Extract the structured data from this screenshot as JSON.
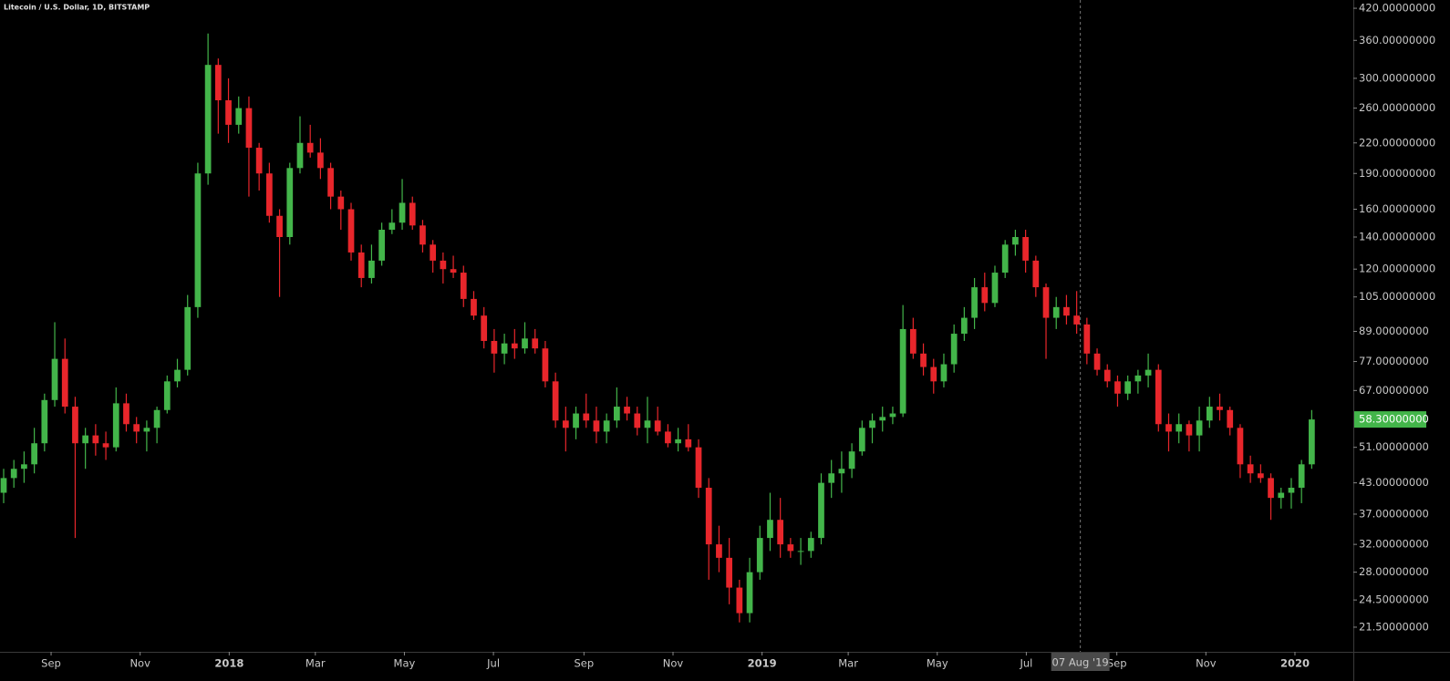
{
  "chart_data": {
    "type": "candlestick",
    "title": "Litecoin / U.S. Dollar, 1D, BITSTAMP",
    "log_scale": true,
    "up_color": "#43b54a",
    "down_color": "#e8262b",
    "xlim": [
      "2017-07-28",
      "2020-02-10"
    ],
    "ylim": [
      19.1,
      437
    ],
    "yticks": [
      {
        "value": 420,
        "label": "420.00000000"
      },
      {
        "value": 360,
        "label": "360.00000000"
      },
      {
        "value": 300,
        "label": "300.00000000"
      },
      {
        "value": 260,
        "label": "260.00000000"
      },
      {
        "value": 220,
        "label": "220.00000000"
      },
      {
        "value": 190,
        "label": "190.00000000"
      },
      {
        "value": 160,
        "label": "160.00000000"
      },
      {
        "value": 140,
        "label": "140.00000000"
      },
      {
        "value": 120,
        "label": "120.00000000"
      },
      {
        "value": 105,
        "label": "105.00000000"
      },
      {
        "value": 89,
        "label": "89.00000000"
      },
      {
        "value": 77,
        "label": "77.00000000"
      },
      {
        "value": 67,
        "label": "67.00000000"
      },
      {
        "value": 51,
        "label": "51.00000000"
      },
      {
        "value": 43,
        "label": "43.00000000"
      },
      {
        "value": 37,
        "label": "37.00000000"
      },
      {
        "value": 32,
        "label": "32.00000000"
      },
      {
        "value": 28,
        "label": "28.00000000"
      },
      {
        "value": 24.5,
        "label": "24.50000000"
      },
      {
        "value": 21.5,
        "label": "21.50000000"
      }
    ],
    "xticks": [
      {
        "value": "2017-09-01",
        "label": "Sep"
      },
      {
        "value": "2017-11-01",
        "label": "Nov"
      },
      {
        "value": "2018-01-01",
        "label": "2018"
      },
      {
        "value": "2018-03-01",
        "label": "Mar"
      },
      {
        "value": "2018-05-01",
        "label": "May"
      },
      {
        "value": "2018-07-01",
        "label": "Jul"
      },
      {
        "value": "2018-09-01",
        "label": "Sep"
      },
      {
        "value": "2018-11-01",
        "label": "Nov"
      },
      {
        "value": "2019-01-01",
        "label": "2019"
      },
      {
        "value": "2019-03-01",
        "label": "Mar"
      },
      {
        "value": "2019-05-01",
        "label": "May"
      },
      {
        "value": "2019-07-01",
        "label": "Jul"
      },
      {
        "value": "2019-09-01",
        "label": "Sep"
      },
      {
        "value": "2019-11-01",
        "label": "Nov"
      },
      {
        "value": "2020-01-01",
        "label": "2020"
      }
    ],
    "crosshair": {
      "value": "2019-08-07",
      "label": "07 Aug '19"
    },
    "last_price": {
      "value": 58.3,
      "label": "58.30000000"
    },
    "x": [
      "2017-07-27",
      "2017-08-03",
      "2017-08-10",
      "2017-08-17",
      "2017-08-24",
      "2017-08-31",
      "2017-09-07",
      "2017-09-14",
      "2017-09-21",
      "2017-09-28",
      "2017-10-05",
      "2017-10-12",
      "2017-10-19",
      "2017-10-26",
      "2017-11-02",
      "2017-11-09",
      "2017-11-16",
      "2017-11-23",
      "2017-11-30",
      "2017-12-07",
      "2017-12-14",
      "2017-12-21",
      "2017-12-28",
      "2018-01-04",
      "2018-01-11",
      "2018-01-18",
      "2018-01-25",
      "2018-02-01",
      "2018-02-08",
      "2018-02-15",
      "2018-02-22",
      "2018-03-01",
      "2018-03-08",
      "2018-03-15",
      "2018-03-22",
      "2018-03-29",
      "2018-04-05",
      "2018-04-12",
      "2018-04-19",
      "2018-04-26",
      "2018-05-03",
      "2018-05-10",
      "2018-05-17",
      "2018-05-24",
      "2018-05-31",
      "2018-06-07",
      "2018-06-14",
      "2018-06-21",
      "2018-06-28",
      "2018-07-05",
      "2018-07-12",
      "2018-07-19",
      "2018-07-26",
      "2018-08-02",
      "2018-08-09",
      "2018-08-16",
      "2018-08-23",
      "2018-08-30",
      "2018-09-06",
      "2018-09-13",
      "2018-09-20",
      "2018-09-27",
      "2018-10-04",
      "2018-10-11",
      "2018-10-18",
      "2018-10-25",
      "2018-11-01",
      "2018-11-08",
      "2018-11-15",
      "2018-11-22",
      "2018-11-29",
      "2018-12-06",
      "2018-12-13",
      "2018-12-20",
      "2018-12-27",
      "2019-01-03",
      "2019-01-10",
      "2019-01-17",
      "2019-01-24",
      "2019-01-31",
      "2019-02-07",
      "2019-02-14",
      "2019-02-21",
      "2019-02-28",
      "2019-03-07",
      "2019-03-14",
      "2019-03-21",
      "2019-03-28",
      "2019-04-04",
      "2019-04-11",
      "2019-04-18",
      "2019-04-25",
      "2019-05-02",
      "2019-05-09",
      "2019-05-16",
      "2019-05-23",
      "2019-05-30",
      "2019-06-06",
      "2019-06-13",
      "2019-06-20",
      "2019-06-27",
      "2019-07-04",
      "2019-07-11",
      "2019-07-18",
      "2019-07-25",
      "2019-08-01",
      "2019-08-08",
      "2019-08-15",
      "2019-08-22",
      "2019-08-29",
      "2019-09-05",
      "2019-09-12",
      "2019-09-19",
      "2019-09-26",
      "2019-10-03",
      "2019-10-10",
      "2019-10-17",
      "2019-10-24",
      "2019-10-31",
      "2019-11-07",
      "2019-11-14",
      "2019-11-21",
      "2019-11-28",
      "2019-12-05",
      "2019-12-12",
      "2019-12-19",
      "2019-12-26",
      "2020-01-02",
      "2020-01-09"
    ],
    "open": [
      41,
      44,
      46,
      47,
      52,
      64,
      78,
      62,
      52,
      54,
      52,
      51,
      63,
      57,
      55,
      56,
      61,
      70,
      74,
      100,
      190,
      320,
      270,
      240,
      260,
      215,
      190,
      155,
      140,
      195,
      220,
      210,
      195,
      170,
      160,
      130,
      115,
      125,
      145,
      150,
      165,
      148,
      135,
      125,
      120,
      118,
      104,
      96,
      85,
      80,
      84,
      82,
      86,
      82,
      70,
      58,
      56,
      60,
      58,
      55,
      58,
      62,
      60,
      56,
      58,
      55,
      52,
      53,
      51,
      42,
      32,
      30,
      26,
      23,
      28,
      33,
      36,
      32,
      31,
      31,
      33,
      43,
      45,
      46,
      50,
      56,
      58,
      59,
      60,
      90,
      80,
      75,
      70,
      76,
      88,
      95,
      110,
      102,
      118,
      135,
      140,
      125,
      110,
      95,
      100,
      96,
      92,
      80,
      74,
      70,
      66,
      70,
      72,
      74,
      57,
      55,
      57,
      54,
      58,
      62,
      61,
      56,
      47,
      45,
      44,
      40,
      41,
      42,
      47
    ],
    "high": [
      46,
      48,
      50,
      56,
      66,
      93,
      86,
      65,
      56,
      57,
      55,
      68,
      66,
      59,
      58,
      62,
      72,
      78,
      106,
      200,
      372,
      330,
      300,
      275,
      275,
      220,
      200,
      160,
      200,
      250,
      240,
      225,
      200,
      175,
      165,
      135,
      135,
      150,
      160,
      185,
      170,
      152,
      138,
      130,
      128,
      122,
      108,
      100,
      90,
      88,
      90,
      93,
      90,
      85,
      73,
      62,
      62,
      66,
      62,
      60,
      68,
      65,
      62,
      65,
      62,
      57,
      56,
      57,
      53,
      44,
      35,
      33,
      27,
      30,
      35,
      41,
      40,
      33,
      33,
      34,
      45,
      48,
      50,
      52,
      58,
      60,
      62,
      62,
      101,
      95,
      84,
      78,
      80,
      92,
      100,
      115,
      118,
      122,
      138,
      145,
      145,
      128,
      112,
      105,
      106,
      108,
      95,
      82,
      76,
      72,
      72,
      74,
      80,
      76,
      60,
      60,
      58,
      62,
      65,
      66,
      62,
      57,
      49,
      47,
      45,
      42,
      44,
      48,
      61
    ],
    "low": [
      39,
      42,
      43,
      45,
      50,
      62,
      60,
      33,
      46,
      49,
      48,
      50,
      55,
      52,
      50,
      52,
      60,
      68,
      72,
      95,
      180,
      230,
      220,
      230,
      170,
      175,
      150,
      105,
      135,
      190,
      205,
      185,
      160,
      145,
      125,
      110,
      112,
      122,
      142,
      145,
      145,
      130,
      118,
      112,
      115,
      100,
      94,
      82,
      73,
      76,
      78,
      80,
      80,
      68,
      56,
      50,
      53,
      56,
      52,
      52,
      56,
      58,
      54,
      52,
      54,
      51,
      50,
      50,
      40,
      27,
      28,
      24,
      22,
      22,
      27,
      31,
      30,
      30,
      29,
      30,
      32,
      40,
      41,
      44,
      49,
      52,
      55,
      57,
      59,
      78,
      72,
      66,
      68,
      73,
      85,
      90,
      98,
      100,
      115,
      128,
      118,
      105,
      78,
      90,
      92,
      88,
      76,
      72,
      68,
      62,
      64,
      66,
      68,
      55,
      50,
      52,
      50,
      50,
      56,
      58,
      54,
      44,
      43,
      43,
      36,
      38,
      38,
      39,
      46
    ],
    "close": [
      44,
      46,
      47,
      52,
      64,
      78,
      62,
      52,
      54,
      52,
      51,
      63,
      57,
      55,
      56,
      61,
      70,
      74,
      100,
      190,
      320,
      270,
      240,
      260,
      215,
      190,
      155,
      140,
      195,
      220,
      210,
      195,
      170,
      160,
      130,
      115,
      125,
      145,
      150,
      165,
      148,
      135,
      125,
      120,
      118,
      104,
      96,
      85,
      80,
      84,
      82,
      86,
      82,
      70,
      58,
      56,
      60,
      58,
      55,
      58,
      62,
      60,
      56,
      58,
      55,
      52,
      53,
      51,
      42,
      32,
      30,
      26,
      23,
      28,
      33,
      36,
      32,
      31,
      31,
      33,
      43,
      45,
      46,
      50,
      56,
      58,
      59,
      60,
      90,
      80,
      75,
      70,
      76,
      88,
      95,
      110,
      102,
      118,
      135,
      140,
      125,
      110,
      95,
      100,
      96,
      92,
      80,
      74,
      70,
      66,
      70,
      72,
      74,
      57,
      55,
      57,
      54,
      58,
      62,
      61,
      56,
      47,
      45,
      44,
      40,
      41,
      42,
      47,
      58.3
    ]
  }
}
